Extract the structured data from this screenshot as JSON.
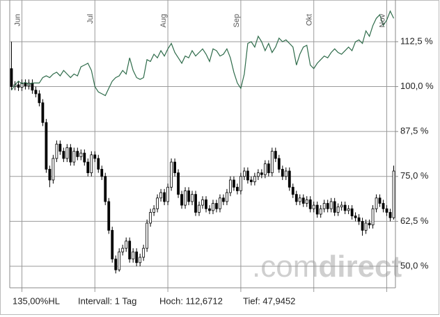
{
  "chart_data": {
    "type": "candlestick",
    "categories": [
      null,
      null,
      null,
      "Jun",
      null,
      null,
      null,
      null,
      null,
      null,
      null,
      null,
      null,
      null,
      null,
      null,
      null,
      null,
      null,
      null,
      null,
      null,
      null,
      null,
      "Jul",
      null,
      null,
      null,
      null,
      null,
      null,
      null,
      null,
      null,
      null,
      null,
      null,
      null,
      null,
      null,
      null,
      null,
      null,
      null,
      null,
      "Aug",
      null,
      null,
      null,
      null,
      null,
      null,
      null,
      null,
      null,
      null,
      null,
      null,
      null,
      null,
      null,
      null,
      null,
      null,
      null,
      null,
      "Sep",
      null,
      null,
      null,
      null,
      null,
      null,
      null,
      null,
      null,
      null,
      null,
      null,
      null,
      null,
      null,
      null,
      null,
      null,
      null,
      null,
      "Okt",
      null,
      null,
      null,
      null,
      null,
      null,
      null,
      null,
      null,
      null,
      null,
      null,
      null,
      null,
      null,
      null,
      null,
      null,
      null,
      null,
      "Nov",
      null,
      null
    ],
    "open": [
      105.0,
      100.0,
      100.5,
      99.8,
      101.0,
      100.2,
      101.0,
      99.0,
      98.0,
      95.5,
      90.0,
      77.0,
      74.0,
      80.0,
      84.0,
      82.0,
      80.0,
      83.0,
      79.0,
      82.0,
      80.5,
      81.5,
      79.0,
      76.0,
      81.0,
      80.0,
      77.0,
      75.0,
      68.0,
      60.0,
      52.0,
      49.0,
      54.0,
      55.0,
      57.0,
      52.0,
      54.0,
      51.0,
      52.5,
      55.0,
      62.0,
      65.0,
      66.0,
      69.0,
      70.5,
      68.0,
      72.0,
      79.0,
      76.0,
      70.0,
      67.0,
      71.0,
      68.0,
      70.0,
      65.0,
      67.0,
      68.5,
      66.0,
      65.5,
      67.5,
      66.0,
      69.0,
      68.0,
      70.5,
      74.0,
      72.0,
      71.0,
      75.0,
      76.5,
      74.0,
      73.5,
      75.0,
      76.0,
      75.5,
      78.5,
      76.0,
      82.0,
      80.0,
      77.0,
      75.0,
      76.5,
      72.0,
      70.0,
      68.0,
      69.0,
      67.5,
      68.5,
      66.0,
      67.0,
      64.5,
      66.0,
      67.5,
      66.0,
      68.0,
      65.0,
      66.5,
      67.0,
      65.5,
      66.0,
      64.0,
      63.5,
      62.5,
      60.0,
      62.0,
      61.5,
      66.0,
      69.0,
      67.5,
      66.0,
      65.0,
      63.5
    ],
    "high": [
      112.5,
      101.5,
      101.5,
      102.0,
      102.0,
      102.0,
      102.0,
      100.0,
      99.0,
      96.5,
      91.0,
      78.0,
      81.0,
      85.0,
      85.0,
      83.0,
      84.0,
      84.0,
      83.0,
      83.0,
      82.5,
      82.5,
      80.0,
      82.0,
      82.0,
      81.0,
      78.0,
      76.0,
      69.0,
      61.0,
      53.0,
      55.0,
      56.0,
      58.0,
      58.0,
      55.0,
      55.0,
      53.5,
      56.0,
      63.0,
      66.0,
      67.0,
      70.0,
      71.5,
      71.5,
      73.0,
      80.0,
      80.0,
      77.0,
      71.0,
      72.0,
      72.0,
      71.0,
      71.0,
      68.0,
      69.5,
      69.5,
      67.0,
      68.5,
      68.5,
      70.0,
      70.0,
      71.5,
      75.0,
      75.0,
      73.0,
      76.0,
      77.5,
      77.5,
      75.0,
      76.0,
      77.0,
      77.0,
      79.5,
      79.5,
      83.0,
      83.0,
      81.0,
      78.0,
      77.5,
      77.5,
      73.0,
      71.0,
      70.0,
      70.0,
      69.5,
      69.5,
      68.0,
      68.0,
      67.0,
      68.5,
      68.5,
      69.0,
      69.0,
      67.5,
      68.0,
      68.0,
      67.0,
      67.0,
      65.0,
      64.5,
      63.5,
      63.0,
      63.0,
      67.0,
      70.0,
      70.0,
      68.5,
      67.0,
      66.0,
      78.0
    ],
    "low": [
      99.0,
      99.0,
      98.8,
      98.8,
      99.2,
      99.2,
      98.0,
      97.0,
      94.5,
      89.0,
      76.0,
      72.0,
      73.0,
      79.0,
      81.0,
      79.0,
      79.0,
      78.0,
      78.0,
      79.5,
      79.5,
      78.0,
      75.0,
      75.0,
      79.0,
      76.0,
      74.0,
      67.0,
      59.0,
      51.0,
      48.0,
      48.5,
      53.0,
      54.0,
      51.0,
      51.0,
      50.0,
      50.0,
      51.5,
      54.0,
      61.0,
      64.0,
      65.0,
      68.0,
      67.0,
      67.0,
      71.0,
      75.0,
      69.0,
      66.0,
      66.0,
      67.0,
      67.0,
      64.0,
      64.0,
      66.0,
      65.0,
      64.5,
      64.5,
      65.0,
      65.0,
      67.0,
      67.0,
      69.5,
      71.0,
      70.0,
      70.0,
      74.0,
      73.0,
      72.5,
      72.5,
      74.0,
      74.5,
      74.5,
      75.0,
      75.0,
      79.0,
      76.0,
      74.0,
      74.0,
      71.0,
      69.0,
      67.0,
      67.0,
      66.5,
      66.5,
      65.0,
      65.0,
      63.5,
      63.5,
      65.0,
      65.0,
      65.0,
      64.0,
      64.0,
      65.5,
      64.5,
      64.5,
      63.0,
      62.5,
      61.5,
      58.5,
      59.0,
      60.5,
      60.5,
      65.0,
      66.5,
      65.0,
      64.0,
      62.5,
      63.0
    ],
    "close": [
      100.0,
      100.5,
      99.8,
      101.0,
      100.2,
      101.0,
      99.0,
      98.0,
      95.5,
      90.0,
      77.0,
      74.0,
      80.0,
      84.0,
      82.0,
      80.0,
      83.0,
      79.0,
      82.0,
      80.5,
      81.5,
      79.0,
      76.0,
      81.0,
      80.0,
      77.0,
      75.0,
      68.0,
      60.0,
      52.0,
      49.0,
      54.0,
      55.0,
      57.0,
      52.0,
      54.0,
      51.0,
      52.5,
      55.0,
      62.0,
      65.0,
      66.0,
      69.0,
      70.5,
      68.0,
      72.0,
      79.0,
      76.0,
      70.0,
      67.0,
      71.0,
      68.0,
      70.0,
      65.0,
      67.0,
      68.5,
      66.0,
      65.5,
      67.5,
      66.0,
      69.0,
      68.0,
      70.5,
      74.0,
      72.0,
      71.0,
      75.0,
      76.5,
      74.0,
      73.5,
      75.0,
      76.0,
      75.5,
      78.5,
      76.0,
      82.0,
      80.0,
      77.0,
      75.0,
      76.5,
      72.0,
      70.0,
      68.0,
      69.0,
      67.5,
      68.5,
      66.0,
      67.0,
      64.5,
      66.0,
      67.5,
      66.0,
      68.0,
      65.0,
      66.5,
      67.0,
      65.5,
      66.0,
      64.0,
      63.5,
      62.5,
      60.0,
      62.0,
      61.5,
      66.0,
      69.0,
      67.5,
      66.0,
      65.0,
      63.5,
      76.5
    ],
    "up_color": "#ffffff",
    "down_color": "#000000",
    "line": {
      "color": "#2e6b4a",
      "values": [
        99.0,
        100.5,
        101.5,
        100.8,
        101.2,
        100.6,
        101.0,
        101.0,
        101.0,
        102.5,
        103.0,
        102.5,
        103.5,
        104.0,
        103.0,
        104.5,
        103.5,
        102.5,
        103.5,
        103.0,
        105.5,
        106.0,
        106.5,
        104.5,
        100.0,
        98.5,
        98.0,
        97.5,
        99.5,
        101.5,
        102.5,
        103.0,
        104.5,
        103.5,
        108.0,
        104.5,
        102.5,
        102.0,
        102.5,
        107.5,
        107.0,
        109.0,
        108.0,
        110.0,
        108.5,
        110.5,
        112.0,
        109.5,
        108.0,
        106.5,
        108.5,
        108.0,
        110.0,
        108.5,
        109.5,
        110.5,
        109.0,
        107.0,
        110.5,
        110.0,
        108.5,
        109.0,
        110.5,
        108.0,
        104.0,
        101.0,
        99.5,
        103.5,
        112.0,
        112.5,
        111.0,
        114.0,
        112.5,
        110.0,
        112.0,
        109.5,
        111.0,
        113.5,
        112.5,
        113.0,
        112.0,
        111.0,
        106.0,
        109.0,
        111.0,
        111.5,
        106.0,
        105.0,
        106.5,
        107.5,
        108.5,
        108.0,
        109.5,
        110.5,
        109.5,
        109.0,
        110.0,
        111.0,
        110.0,
        112.5,
        113.0,
        112.0,
        115.5,
        114.0,
        117.0,
        119.0,
        120.0,
        117.0,
        118.5,
        121.0,
        119.0
      ]
    },
    "ylim": [
      44,
      124.1
    ],
    "yticks": [
      {
        "value": 50,
        "label": "50,0 %"
      },
      {
        "value": 62.5,
        "label": "62,5 %"
      },
      {
        "value": 75,
        "label": "75,0 %"
      },
      {
        "value": 87.5,
        "label": "87,5 %"
      },
      {
        "value": 100,
        "label": "100,0 %"
      },
      {
        "value": 112.5,
        "label": "112,5 %"
      }
    ],
    "grid": true
  },
  "footer": [
    "135,00%HL",
    "Intervall: 1 Tag",
    "Hoch: 112,6712",
    "Tief: 47,9452"
  ],
  "watermark": {
    "prefix": ".com",
    "brand": "direct"
  }
}
